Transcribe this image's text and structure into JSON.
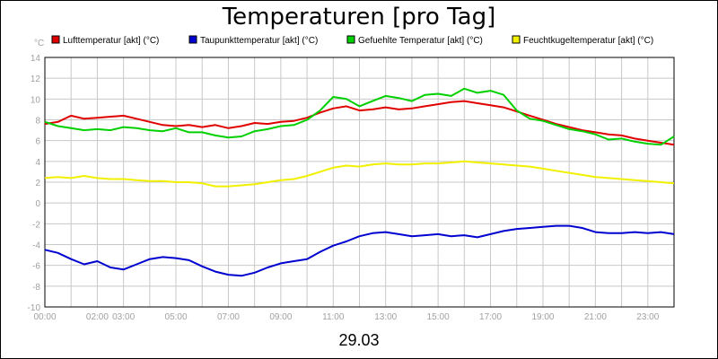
{
  "chart_data": {
    "type": "line",
    "title": "Temperaturen [pro Tag]",
    "unit_label": "°C",
    "date_label": "29.03",
    "ylim": [
      -10,
      14
    ],
    "y_ticks": [
      14,
      12,
      10,
      8,
      6,
      4,
      2,
      0,
      -2,
      -4,
      -6,
      -8,
      -10
    ],
    "x_range_hours": [
      0,
      24
    ],
    "x_tick_labels": [
      {
        "h": 0,
        "label": "00:00"
      },
      {
        "h": 2,
        "label": "02:00"
      },
      {
        "h": 3,
        "label": "03:00"
      },
      {
        "h": 5,
        "label": "05:00"
      },
      {
        "h": 7,
        "label": "07:00"
      },
      {
        "h": 9,
        "label": "09:00"
      },
      {
        "h": 11,
        "label": "11:00"
      },
      {
        "h": 13,
        "label": "13:00"
      },
      {
        "h": 15,
        "label": "15:00"
      },
      {
        "h": 17,
        "label": "17:00"
      },
      {
        "h": 19,
        "label": "19:00"
      },
      {
        "h": 21,
        "label": "21:00"
      },
      {
        "h": 23,
        "label": "23:00"
      }
    ],
    "grid": true,
    "legend_position": "top",
    "series": [
      {
        "name": "Lufttemperatur [akt] (°C)",
        "color": "#e00000",
        "x": [
          0,
          0.5,
          1,
          1.5,
          2,
          2.5,
          3,
          3.5,
          4,
          4.5,
          5,
          5.5,
          6,
          6.5,
          7,
          7.5,
          8,
          8.5,
          9,
          9.5,
          10,
          10.5,
          11,
          11.5,
          12,
          12.5,
          13,
          13.5,
          14,
          14.5,
          15,
          15.5,
          16,
          16.5,
          17,
          17.5,
          18,
          18.5,
          19,
          19.5,
          20,
          20.5,
          21,
          21.5,
          22,
          22.5,
          23,
          23.5,
          24
        ],
        "y": [
          7.6,
          7.8,
          8.4,
          8.1,
          8.2,
          8.3,
          8.4,
          8.1,
          7.8,
          7.5,
          7.4,
          7.5,
          7.3,
          7.5,
          7.2,
          7.4,
          7.7,
          7.6,
          7.8,
          7.9,
          8.2,
          8.7,
          9.1,
          9.3,
          8.9,
          9.0,
          9.2,
          9.0,
          9.1,
          9.3,
          9.5,
          9.7,
          9.8,
          9.6,
          9.4,
          9.2,
          8.8,
          8.4,
          8.0,
          7.6,
          7.3,
          7.0,
          6.8,
          6.6,
          6.5,
          6.2,
          6.0,
          5.8,
          5.6
        ]
      },
      {
        "name": "Taupunkttemperatur [akt] (°C)",
        "color": "#0000d0",
        "x": [
          0,
          0.5,
          1,
          1.5,
          2,
          2.5,
          3,
          3.5,
          4,
          4.5,
          5,
          5.5,
          6,
          6.5,
          7,
          7.5,
          8,
          8.5,
          9,
          9.5,
          10,
          10.5,
          11,
          11.5,
          12,
          12.5,
          13,
          13.5,
          14,
          14.5,
          15,
          15.5,
          16,
          16.5,
          17,
          17.5,
          18,
          18.5,
          19,
          19.5,
          20,
          20.5,
          21,
          21.5,
          22,
          22.5,
          23,
          23.5,
          24
        ],
        "y": [
          -4.5,
          -4.8,
          -5.4,
          -5.9,
          -5.6,
          -6.2,
          -6.4,
          -5.9,
          -5.4,
          -5.2,
          -5.3,
          -5.5,
          -6.1,
          -6.6,
          -6.9,
          -7.0,
          -6.7,
          -6.2,
          -5.8,
          -5.6,
          -5.4,
          -4.7,
          -4.1,
          -3.7,
          -3.2,
          -2.9,
          -2.8,
          -3.0,
          -3.2,
          -3.1,
          -3.0,
          -3.2,
          -3.1,
          -3.3,
          -3.0,
          -2.7,
          -2.5,
          -2.4,
          -2.3,
          -2.2,
          -2.2,
          -2.4,
          -2.8,
          -2.9,
          -2.9,
          -2.8,
          -2.9,
          -2.8,
          -3.0
        ]
      },
      {
        "name": "Gefuehlte Temperatur [akt] (°C)",
        "color": "#00d000",
        "x": [
          0,
          0.5,
          1,
          1.5,
          2,
          2.5,
          3,
          3.5,
          4,
          4.5,
          5,
          5.5,
          6,
          6.5,
          7,
          7.5,
          8,
          8.5,
          9,
          9.5,
          10,
          10.5,
          11,
          11.5,
          12,
          12.5,
          13,
          13.5,
          14,
          14.5,
          15,
          15.5,
          16,
          16.5,
          17,
          17.5,
          18,
          18.5,
          19,
          19.5,
          20,
          20.5,
          21,
          21.5,
          22,
          22.5,
          23,
          23.5,
          24
        ],
        "y": [
          7.8,
          7.4,
          7.2,
          7.0,
          7.1,
          7.0,
          7.3,
          7.2,
          7.0,
          6.9,
          7.2,
          6.8,
          6.8,
          6.5,
          6.3,
          6.4,
          6.9,
          7.1,
          7.4,
          7.5,
          8.0,
          8.9,
          10.2,
          10.0,
          9.3,
          9.8,
          10.3,
          10.1,
          9.8,
          10.4,
          10.5,
          10.3,
          11.0,
          10.6,
          10.8,
          10.4,
          8.9,
          8.1,
          7.9,
          7.5,
          7.1,
          6.9,
          6.6,
          6.1,
          6.2,
          5.9,
          5.7,
          5.6,
          6.4
        ]
      },
      {
        "name": "Feuchtkugeltemperatur [akt] (°C)",
        "color": "#f0f000",
        "x": [
          0,
          0.5,
          1,
          1.5,
          2,
          2.5,
          3,
          3.5,
          4,
          4.5,
          5,
          5.5,
          6,
          6.5,
          7,
          7.5,
          8,
          8.5,
          9,
          9.5,
          10,
          10.5,
          11,
          11.5,
          12,
          12.5,
          13,
          13.5,
          14,
          14.5,
          15,
          15.5,
          16,
          16.5,
          17,
          17.5,
          18,
          18.5,
          19,
          19.5,
          20,
          20.5,
          21,
          21.5,
          22,
          22.5,
          23,
          23.5,
          24
        ],
        "y": [
          2.4,
          2.5,
          2.4,
          2.6,
          2.4,
          2.3,
          2.3,
          2.2,
          2.1,
          2.1,
          2.0,
          2.0,
          1.9,
          1.6,
          1.6,
          1.7,
          1.8,
          2.0,
          2.2,
          2.3,
          2.6,
          3.0,
          3.4,
          3.6,
          3.5,
          3.7,
          3.8,
          3.7,
          3.7,
          3.8,
          3.8,
          3.9,
          4.0,
          3.9,
          3.8,
          3.7,
          3.6,
          3.5,
          3.3,
          3.1,
          2.9,
          2.7,
          2.5,
          2.4,
          2.3,
          2.2,
          2.1,
          2.0,
          1.9
        ]
      }
    ]
  }
}
